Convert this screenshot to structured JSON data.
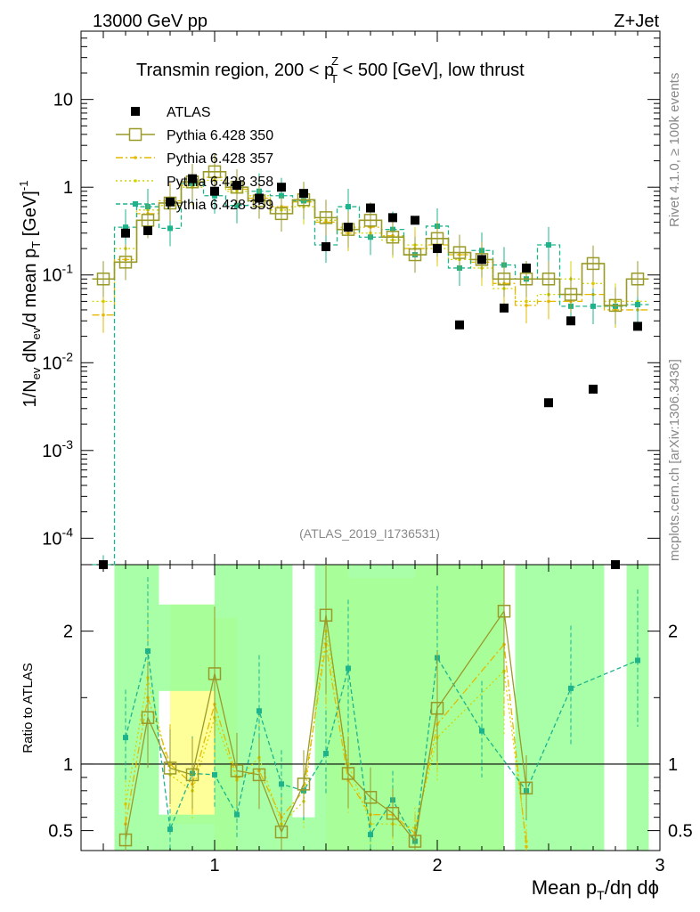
{
  "chart_data": {
    "type": "scatter",
    "header_left": "13000 GeV pp",
    "header_right": "Z+Jet",
    "title_pre": "Transmin region, 200 < p",
    "title_sup": "Z",
    "title_sub": "T",
    "title_post": " < 500 [GeV], low thrust",
    "ylabel": "1/N_ev dN_ev/d mean p_T [GeV]^-1",
    "ratio_ylabel": "Ratio to ATLAS",
    "xlabel": "Mean p_T/dη dϕ",
    "xlim": [
      0.4,
      3.0
    ],
    "ylim": [
      5e-05,
      60
    ],
    "ratio_ylim": [
      0.35,
      2.5
    ],
    "yscale": "log",
    "x_ticks": [
      "1",
      "2",
      "3"
    ],
    "y_ticks": [
      "10^-4",
      "10^-3",
      "10^-2",
      "10^-1",
      "1",
      "10"
    ],
    "ratio_ticks": [
      "0.5",
      "1",
      "2"
    ],
    "watermark": "(ATLAS_2019_I1736531)",
    "side_text_top": "Rivet 4.1.0, ≥ 100k events",
    "side_text_bottom": "mcplots.cern.ch [arXiv:1306.3436]",
    "x": [
      0.5,
      0.6,
      0.7,
      0.8,
      0.9,
      1.0,
      1.1,
      1.2,
      1.3,
      1.4,
      1.5,
      1.6,
      1.7,
      1.8,
      1.9,
      2.0,
      2.1,
      2.2,
      2.3,
      2.4,
      2.5,
      2.6,
      2.7,
      2.8,
      2.9
    ],
    "series": [
      {
        "name": "ATLAS",
        "color": "#000000",
        "style": "data",
        "values": [
          4e-05,
          0.3,
          0.32,
          0.68,
          1.25,
          0.9,
          1.05,
          0.75,
          1.0,
          0.85,
          0.21,
          0.35,
          0.58,
          0.45,
          0.42,
          0.2,
          0.027,
          0.15,
          0.042,
          0.12,
          0.0035,
          0.03,
          0.005,
          4e-05,
          0.026
        ]
      },
      {
        "name": "Pythia 6.428 350",
        "color": "#9a9a28",
        "style": "solid",
        "values": [
          0.09,
          0.14,
          0.42,
          0.66,
          1.15,
          1.5,
          1.0,
          0.7,
          0.5,
          0.72,
          0.45,
          0.33,
          0.42,
          0.27,
          0.17,
          0.26,
          0.18,
          0.15,
          0.09,
          0.09,
          0.09,
          0.06,
          0.135,
          0.045,
          0.09
        ]
      },
      {
        "name": "Pythia 6.428 357",
        "color": "#e6b800",
        "style": "dashdot",
        "values": [
          0.035,
          0.15,
          0.5,
          0.7,
          1.05,
          1.3,
          0.95,
          0.75,
          0.6,
          0.68,
          0.4,
          0.3,
          0.35,
          0.28,
          0.2,
          0.22,
          0.17,
          0.14,
          0.08,
          0.045,
          0.05,
          0.05,
          0.06,
          0.04,
          0.04
        ]
      },
      {
        "name": "Pythia 6.428 358",
        "color": "#d4d400",
        "style": "dotted",
        "values": [
          0.05,
          0.2,
          0.55,
          0.62,
          1.0,
          1.2,
          0.9,
          0.8,
          0.55,
          0.6,
          0.42,
          0.35,
          0.3,
          0.25,
          0.22,
          0.2,
          0.15,
          0.12,
          0.07,
          0.05,
          0.06,
          0.09,
          0.08,
          0.05,
          0.05
        ]
      },
      {
        "name": "Pythia 6.428 359",
        "color": "#1db48c",
        "style": "dashed",
        "values": [
          4e-05,
          0.35,
          0.6,
          0.34,
          1.1,
          0.8,
          0.62,
          0.9,
          0.8,
          0.7,
          0.22,
          0.6,
          0.27,
          0.33,
          0.17,
          0.36,
          0.12,
          0.19,
          0.13,
          0.09,
          0.22,
          0.044,
          0.044,
          0.044,
          0.046
        ]
      }
    ],
    "ratio_series": [
      {
        "name": "Pythia 6.428 350",
        "values": [
          null,
          0.43,
          1.35,
          0.97,
          0.92,
          1.68,
          0.95,
          0.92,
          0.49,
          0.85,
          2.12,
          0.93,
          0.75,
          0.63,
          0.42,
          1.42,
          null,
          null,
          2.15,
          0.82,
          null,
          null,
          null,
          null,
          null
        ]
      },
      {
        "name": "Pythia 6.428 359",
        "values": [
          null,
          1.2,
          1.85,
          0.51,
          0.93,
          0.92,
          0.62,
          1.4,
          0.85,
          0.8,
          1.08,
          1.72,
          0.47,
          0.73,
          0.42,
          1.8,
          null,
          1.25,
          null,
          0.8,
          null,
          1.57,
          null,
          null,
          1.78
        ]
      },
      {
        "name": "Pythia 6.428 357",
        "values": [
          null,
          0.55,
          1.5,
          1.0,
          0.85,
          1.45,
          0.9,
          0.95,
          0.6,
          0.8,
          1.9,
          0.88,
          0.62,
          0.62,
          0.48,
          1.3,
          null,
          null,
          1.9,
          0.38,
          null,
          null,
          null,
          null,
          null
        ]
      },
      {
        "name": "Pythia 6.428 358",
        "values": [
          null,
          0.7,
          1.65,
          0.92,
          0.8,
          1.35,
          0.88,
          1.05,
          0.55,
          0.72,
          2.0,
          1.0,
          0.55,
          0.55,
          0.52,
          1.2,
          null,
          null,
          1.7,
          0.42,
          null,
          null,
          null,
          null,
          null
        ]
      }
    ]
  }
}
